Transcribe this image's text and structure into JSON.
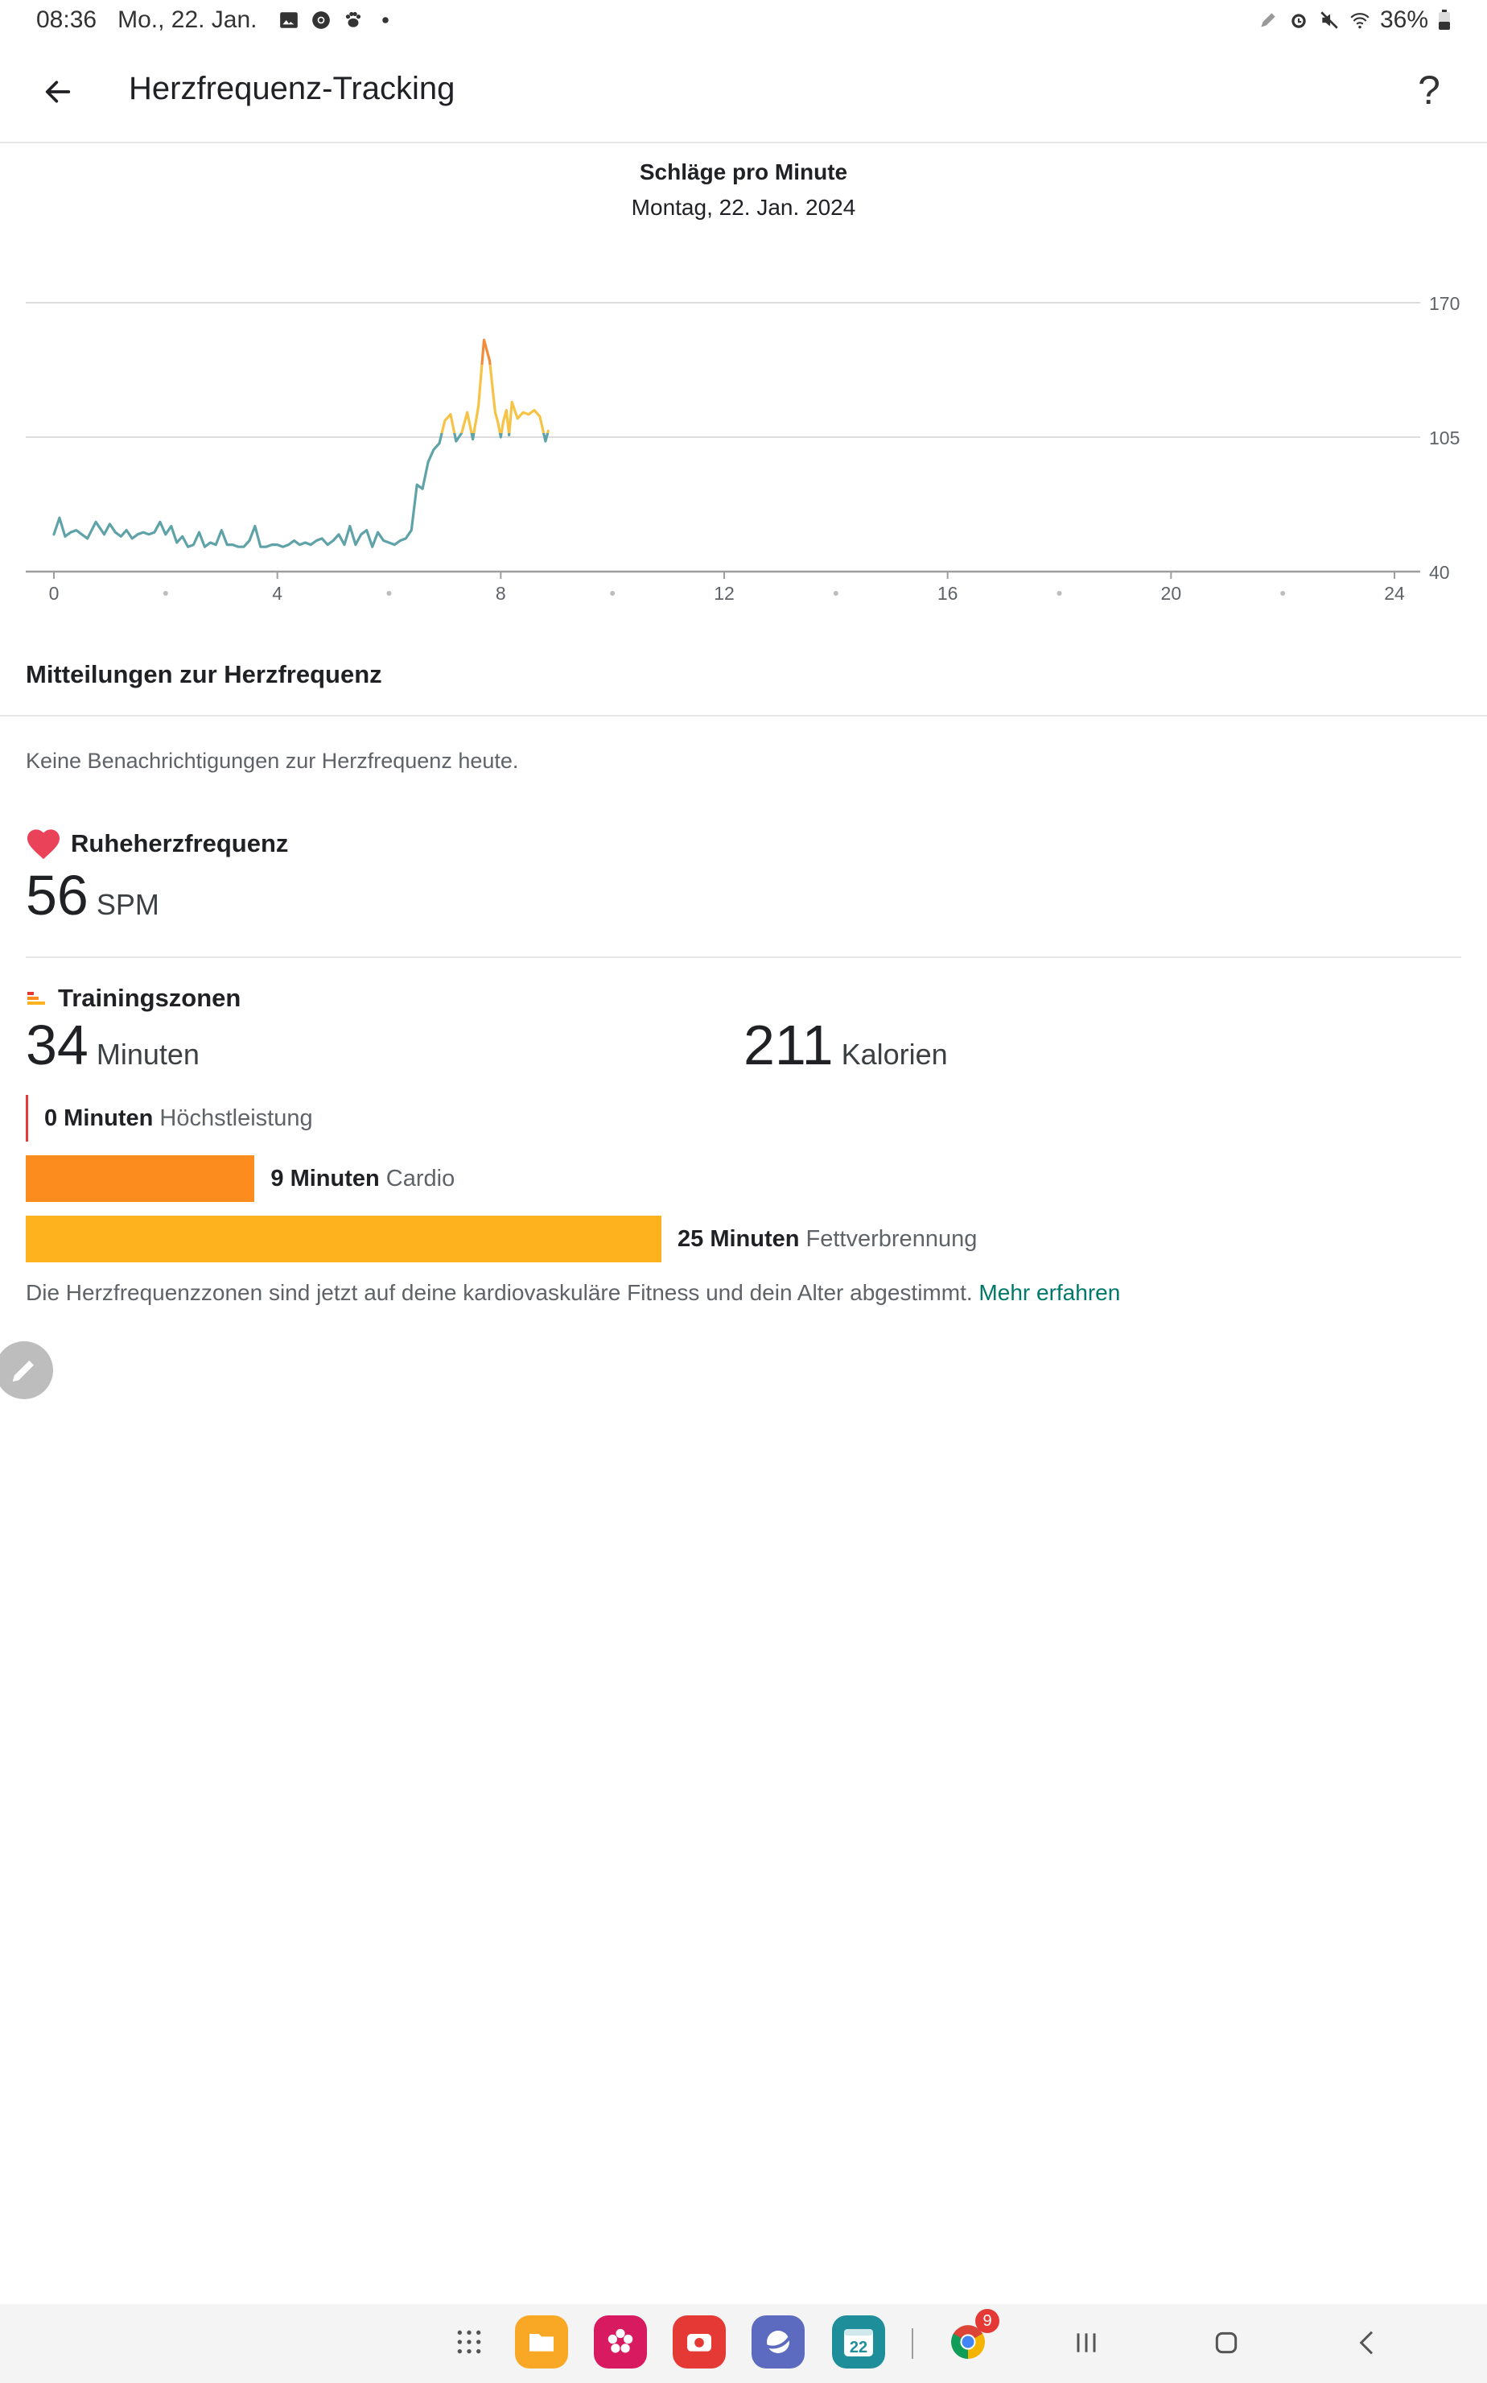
{
  "status_bar": {
    "time": "08:36",
    "date": "Mo., 22. Jan.",
    "battery": "36%",
    "icons_left": [
      "image-icon",
      "chrome-icon",
      "paw-icon",
      "dot-icon"
    ],
    "icons_right": [
      "pen-icon",
      "alarm-icon",
      "mute-icon",
      "wifi-icon",
      "battery-icon"
    ]
  },
  "app_bar": {
    "title": "Herzfrequenz-Tracking",
    "help_label": "?"
  },
  "chart_header": {
    "title": "Schläge pro Minute",
    "subtitle": "Montag, 22. Jan. 2024"
  },
  "chart_data": {
    "type": "line",
    "xlim": [
      0,
      24
    ],
    "ylim": [
      40,
      170
    ],
    "y_ticks": [
      40,
      105,
      170
    ],
    "x_tick_labels": [
      "0",
      "4",
      "8",
      "12",
      "16",
      "20",
      "24"
    ],
    "x_minor_ticks": [
      2,
      6,
      10,
      14,
      18,
      22
    ],
    "grid": true,
    "legend": "none",
    "colors": {
      "rest": "#5fa3a9",
      "fat_burn": "#f6c344",
      "cardio": "#f28c38",
      "grid": "#dcdcdc",
      "axis": "#9e9e9e",
      "tick_label": "#5f6368"
    },
    "zone_thresholds": {
      "fat_burn": 107,
      "cardio": 140
    },
    "series": [
      {
        "x": [
          0.0,
          0.1,
          0.2,
          0.3,
          0.4,
          0.5,
          0.6,
          0.75,
          0.9,
          1.0,
          1.1,
          1.2,
          1.3,
          1.4,
          1.5,
          1.6,
          1.7,
          1.8,
          1.9,
          2.0,
          2.1,
          2.2,
          2.3,
          2.4,
          2.5,
          2.6,
          2.7,
          2.8,
          2.9,
          3.0,
          3.1,
          3.2,
          3.3,
          3.4,
          3.5,
          3.6,
          3.7,
          3.8,
          3.9,
          4.0,
          4.1,
          4.2,
          4.3,
          4.4,
          4.5,
          4.6,
          4.7,
          4.8,
          4.9,
          5.0,
          5.1,
          5.2,
          5.3,
          5.4,
          5.5,
          5.6,
          5.7,
          5.8,
          5.9,
          6.0,
          6.1,
          6.2,
          6.3,
          6.4,
          6.5,
          6.6,
          6.7,
          6.8,
          6.9,
          7.0,
          7.1,
          7.2,
          7.3,
          7.4,
          7.5,
          7.6,
          7.7,
          7.8,
          7.9,
          7.95,
          8.0,
          8.05,
          8.1,
          8.15,
          8.2,
          8.3,
          8.4,
          8.5,
          8.6,
          8.7,
          8.8,
          8.85
        ],
        "y": [
          58,
          66,
          57,
          59,
          60,
          58,
          56,
          64,
          58,
          63,
          59,
          57,
          60,
          56,
          58,
          59,
          58,
          59,
          64,
          58,
          62,
          54,
          57,
          52,
          53,
          59,
          52,
          54,
          53,
          60,
          53,
          53,
          52,
          52,
          55,
          62,
          52,
          52,
          53,
          53,
          52,
          53,
          55,
          53,
          54,
          53,
          55,
          56,
          53,
          55,
          58,
          53,
          62,
          53,
          58,
          60,
          52,
          59,
          55,
          54,
          53,
          55,
          56,
          60,
          82,
          80,
          93,
          99,
          102,
          113,
          116,
          103,
          107,
          117,
          104,
          120,
          152,
          142,
          117,
          112,
          105,
          113,
          118,
          106,
          122,
          114,
          117,
          116,
          118,
          115,
          103,
          108
        ]
      }
    ]
  },
  "notifications": {
    "heading": "Mitteilungen zur Herzfrequenz",
    "empty_text": "Keine Benachrichtigungen zur Herzfrequenz heute."
  },
  "resting_hr": {
    "label": "Ruheherzfrequenz",
    "value": "56",
    "unit": "SPM"
  },
  "training_zones": {
    "label": "Trainingszonen",
    "minutes_value": "34",
    "minutes_unit": "Minuten",
    "calories_value": "211",
    "calories_unit": "Kalorien",
    "max_minutes": 25,
    "zones": [
      {
        "minutes": 0,
        "value_label": "0 Minuten",
        "name": "Höchstleistung",
        "color": "#e53935"
      },
      {
        "minutes": 9,
        "value_label": "9 Minuten",
        "name": "Cardio",
        "color": "#fd8c1e"
      },
      {
        "minutes": 25,
        "value_label": "25 Minuten",
        "name": "Fettverbrennung",
        "color": "#fdb21e"
      }
    ],
    "note": "Die Herzfrequenzzonen sind jetzt auf deine kardiovaskuläre Fitness und dein Alter abgestimmt.",
    "learn_more": "Mehr erfahren"
  },
  "taskbar": {
    "calendar_day": "22",
    "chrome_badge": "9",
    "apps": [
      "apps-grid-icon",
      "my-files-icon",
      "gallery-icon",
      "screen-recorder-icon",
      "samsung-internet-icon",
      "calendar-icon",
      "chrome-icon"
    ],
    "nav": [
      "recents-icon",
      "home-icon",
      "back-nav-icon"
    ]
  }
}
